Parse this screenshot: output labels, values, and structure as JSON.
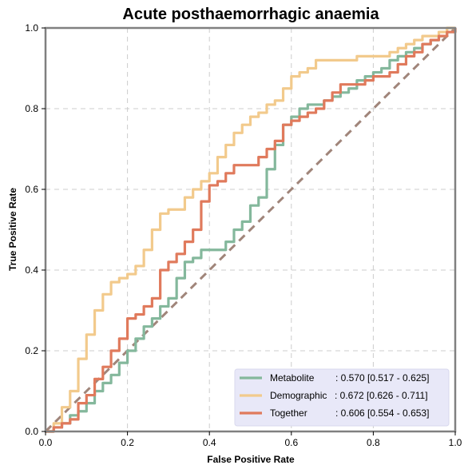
{
  "chart_data": {
    "type": "line",
    "title": "Acute posthaemorrhagic anaemia",
    "xlabel": "False Positive Rate",
    "ylabel": "True Positive Rate",
    "xlim": [
      0,
      1
    ],
    "ylim": [
      0,
      1
    ],
    "xticks": [
      "0.0",
      "0.2",
      "0.4",
      "0.6",
      "0.8",
      "1.0"
    ],
    "yticks": [
      "0.0",
      "0.2",
      "0.4",
      "0.6",
      "0.8",
      "1.0"
    ],
    "grid": true,
    "legend_position": "bottom-right",
    "diagonal": {
      "x": [
        0,
        1
      ],
      "y": [
        0,
        1
      ],
      "color": "#a0857a",
      "style": "dashed"
    },
    "series": [
      {
        "name": "Metabolite",
        "score": ": 0.570 [0.517 - 0.625]",
        "color": "#84b89c",
        "x": [
          0,
          0.02,
          0.04,
          0.06,
          0.08,
          0.1,
          0.12,
          0.14,
          0.16,
          0.18,
          0.2,
          0.22,
          0.24,
          0.26,
          0.28,
          0.3,
          0.32,
          0.34,
          0.36,
          0.38,
          0.4,
          0.42,
          0.44,
          0.46,
          0.48,
          0.5,
          0.52,
          0.54,
          0.56,
          0.58,
          0.6,
          0.62,
          0.64,
          0.66,
          0.68,
          0.7,
          0.72,
          0.74,
          0.76,
          0.78,
          0.8,
          0.82,
          0.84,
          0.86,
          0.88,
          0.9,
          0.92,
          0.94,
          0.96,
          0.98,
          1.0
        ],
        "y": [
          0,
          0.01,
          0.02,
          0.04,
          0.05,
          0.07,
          0.1,
          0.12,
          0.14,
          0.17,
          0.2,
          0.23,
          0.26,
          0.28,
          0.31,
          0.33,
          0.38,
          0.42,
          0.43,
          0.45,
          0.45,
          0.45,
          0.47,
          0.5,
          0.52,
          0.56,
          0.58,
          0.65,
          0.71,
          0.76,
          0.78,
          0.8,
          0.81,
          0.81,
          0.82,
          0.83,
          0.84,
          0.85,
          0.87,
          0.88,
          0.89,
          0.9,
          0.92,
          0.93,
          0.94,
          0.95,
          0.96,
          0.97,
          0.98,
          0.99,
          1.0
        ]
      },
      {
        "name": "Demographic",
        "score": ": 0.672 [0.626 - 0.711]",
        "color": "#f2ca8c",
        "x": [
          0,
          0.02,
          0.04,
          0.06,
          0.08,
          0.1,
          0.12,
          0.14,
          0.16,
          0.18,
          0.2,
          0.22,
          0.24,
          0.26,
          0.28,
          0.3,
          0.32,
          0.34,
          0.36,
          0.38,
          0.4,
          0.42,
          0.44,
          0.46,
          0.48,
          0.5,
          0.52,
          0.54,
          0.56,
          0.58,
          0.6,
          0.62,
          0.64,
          0.66,
          0.68,
          0.7,
          0.72,
          0.74,
          0.76,
          0.78,
          0.8,
          0.82,
          0.84,
          0.86,
          0.88,
          0.9,
          0.92,
          0.94,
          0.96,
          0.98,
          1.0
        ],
        "y": [
          0,
          0.02,
          0.06,
          0.1,
          0.18,
          0.24,
          0.3,
          0.34,
          0.37,
          0.38,
          0.39,
          0.41,
          0.45,
          0.5,
          0.54,
          0.55,
          0.55,
          0.58,
          0.6,
          0.62,
          0.64,
          0.68,
          0.71,
          0.74,
          0.76,
          0.78,
          0.79,
          0.81,
          0.82,
          0.85,
          0.88,
          0.89,
          0.9,
          0.92,
          0.92,
          0.92,
          0.92,
          0.92,
          0.93,
          0.93,
          0.93,
          0.93,
          0.94,
          0.95,
          0.96,
          0.97,
          0.98,
          0.98,
          0.99,
          1.0,
          1.0
        ]
      },
      {
        "name": "Together",
        "score": ": 0.606 [0.554 - 0.653]",
        "color": "#e07a5c",
        "x": [
          0,
          0.02,
          0.04,
          0.06,
          0.08,
          0.1,
          0.12,
          0.14,
          0.16,
          0.18,
          0.2,
          0.22,
          0.24,
          0.26,
          0.28,
          0.3,
          0.32,
          0.34,
          0.36,
          0.38,
          0.4,
          0.42,
          0.44,
          0.46,
          0.48,
          0.5,
          0.52,
          0.54,
          0.56,
          0.58,
          0.6,
          0.62,
          0.64,
          0.66,
          0.68,
          0.7,
          0.72,
          0.74,
          0.76,
          0.78,
          0.8,
          0.82,
          0.84,
          0.86,
          0.88,
          0.9,
          0.92,
          0.94,
          0.96,
          0.98,
          1.0
        ],
        "y": [
          0,
          0.01,
          0.02,
          0.03,
          0.07,
          0.09,
          0.13,
          0.16,
          0.2,
          0.23,
          0.28,
          0.29,
          0.31,
          0.33,
          0.4,
          0.42,
          0.44,
          0.47,
          0.5,
          0.57,
          0.61,
          0.62,
          0.64,
          0.66,
          0.66,
          0.66,
          0.68,
          0.7,
          0.72,
          0.76,
          0.77,
          0.78,
          0.79,
          0.8,
          0.82,
          0.84,
          0.86,
          0.86,
          0.86,
          0.87,
          0.88,
          0.88,
          0.89,
          0.91,
          0.93,
          0.94,
          0.96,
          0.97,
          0.98,
          0.99,
          1.0
        ]
      }
    ]
  }
}
